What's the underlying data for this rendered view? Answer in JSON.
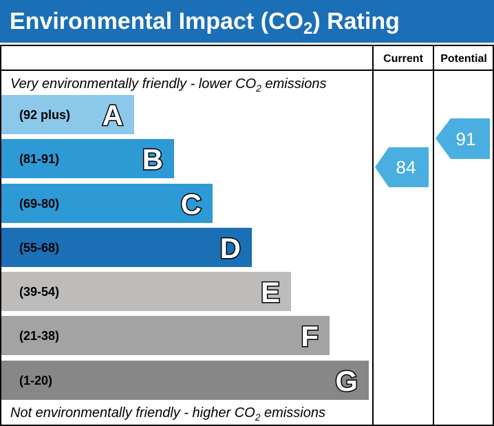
{
  "title": [
    "Environmental Impact (CO",
    "2",
    ") Rating"
  ],
  "columns": [
    "Current",
    "Potential"
  ],
  "top_note": [
    "Very environmentally friendly - lower CO",
    "2",
    " emissions"
  ],
  "bottom_note": [
    "Not environmentally friendly - higher CO",
    "2",
    " emissions"
  ],
  "bands": [
    {
      "range": "(92 plus)",
      "letter": "A",
      "color": "#8cc8e9"
    },
    {
      "range": "(81-91)",
      "letter": "B",
      "color": "#2d9ad6"
    },
    {
      "range": "(69-80)",
      "letter": "C",
      "color": "#2d9ad6"
    },
    {
      "range": "(55-68)",
      "letter": "D",
      "color": "#1a6fb5"
    },
    {
      "range": "(39-54)",
      "letter": "E",
      "color": "#bdbcbb"
    },
    {
      "range": "(21-38)",
      "letter": "F",
      "color": "#a3a3a3"
    },
    {
      "range": "(1-20)",
      "letter": "G",
      "color": "#878787"
    }
  ],
  "current": {
    "value": 84,
    "color": "#4aaee1"
  },
  "potential": {
    "value": 91,
    "color": "#4aaee1"
  }
}
